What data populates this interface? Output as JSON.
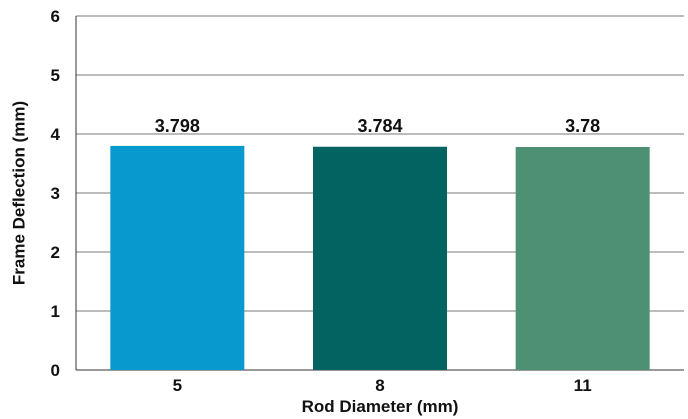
{
  "chart_data": {
    "type": "bar",
    "categories": [
      "5",
      "8",
      "11"
    ],
    "values": [
      3.798,
      3.784,
      3.78
    ],
    "value_labels": [
      "3.798",
      "3.784",
      "3.78"
    ],
    "colors": [
      "#0899cf",
      "#036361",
      "#4e9073"
    ],
    "xlabel": "Rod Diameter (mm)",
    "ylabel": "Frame Deflection (mm)",
    "ylim": [
      0,
      6
    ],
    "yticks": [
      "0",
      "1",
      "2",
      "3",
      "4",
      "5",
      "6"
    ],
    "grid": true,
    "legend": "none"
  }
}
